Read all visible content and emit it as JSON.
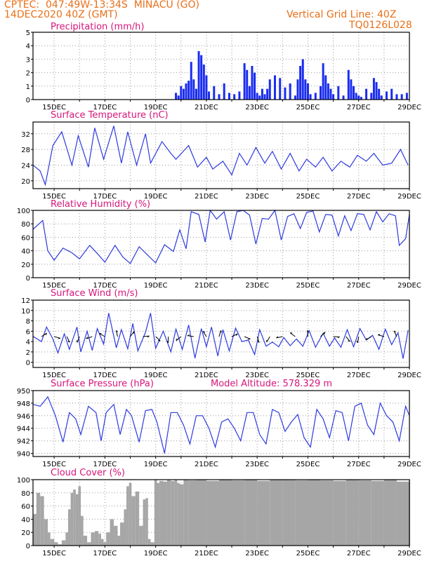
{
  "header": {
    "line1_left": "CPTEC:  047:49W-13:34S  MINACU (GO)",
    "line2_left": "14DEC2020 40Z (GMT)",
    "line1_right": "Vertical Grid Line: 40Z",
    "line2_right": "TQ0126L028"
  },
  "colors": {
    "header": "#e8701a",
    "title": "#d6157a",
    "series": "#2e3adf",
    "bars": "#1a2cf0",
    "cloud": "#a6a6a6",
    "grid": "#999999"
  },
  "x_tick_labels": [
    "15DEC",
    "17DEC",
    "19DEC",
    "21DEC",
    "23DEC",
    "25DEC",
    "27DEC",
    "29DEC"
  ],
  "chart_data": [
    {
      "id": "precip",
      "type": "bar",
      "title": "Precipitation (mm/h)",
      "xlabel": "",
      "ylabel": "",
      "ylim": [
        0,
        5
      ],
      "ytick_labels": [
        "0",
        "1",
        "2",
        "3",
        "4",
        "5"
      ],
      "x_range_days": [
        14.167,
        29.0
      ],
      "x": [
        19.8,
        19.9,
        20.0,
        20.1,
        20.2,
        20.3,
        20.4,
        20.5,
        20.6,
        20.7,
        20.8,
        20.9,
        21.0,
        21.1,
        21.3,
        21.5,
        21.7,
        21.9,
        22.1,
        22.3,
        22.5,
        22.6,
        22.7,
        22.8,
        22.9,
        23.0,
        23.1,
        23.2,
        23.3,
        23.4,
        23.5,
        23.7,
        23.9,
        24.1,
        24.3,
        24.5,
        24.6,
        24.7,
        24.8,
        24.9,
        25.0,
        25.1,
        25.3,
        25.5,
        25.6,
        25.7,
        25.8,
        25.9,
        26.0,
        26.2,
        26.4,
        26.6,
        26.7,
        26.8,
        26.9,
        27.0,
        27.1,
        27.3,
        27.5,
        27.6,
        27.7,
        27.8,
        27.9,
        28.1,
        28.3,
        28.5,
        28.7,
        28.9
      ],
      "values": [
        0.5,
        0.3,
        1.0,
        0.8,
        1.2,
        1.4,
        2.8,
        1.5,
        0.8,
        3.6,
        3.3,
        2.6,
        1.8,
        0.6,
        1.0,
        0.4,
        1.2,
        0.5,
        0.4,
        0.6,
        2.7,
        2.2,
        1.0,
        2.5,
        2.0,
        0.5,
        0.3,
        0.8,
        0.4,
        0.8,
        1.5,
        1.8,
        1.6,
        0.9,
        1.2,
        0.3,
        1.5,
        2.5,
        3.0,
        1.5,
        1.2,
        0.4,
        0.5,
        1.0,
        2.7,
        1.8,
        1.2,
        0.8,
        0.4,
        1.0,
        0.3,
        2.2,
        1.5,
        1.0,
        0.5,
        0.3,
        0.2,
        0.8,
        0.5,
        1.6,
        1.3,
        0.8,
        0.3,
        0.6,
        0.8,
        0.4,
        0.4,
        0.5
      ]
    },
    {
      "id": "temp",
      "type": "line",
      "title": "Surface Temperature (nC)",
      "xlabel": "",
      "ylabel": "",
      "ylim": [
        18,
        35
      ],
      "ytick_labels": [
        "20",
        "24",
        "28",
        "32"
      ],
      "ytick_values": [
        20,
        24,
        28,
        32
      ],
      "x_range_days": [
        14.167,
        29.0
      ],
      "x": [
        14.17,
        14.45,
        14.65,
        14.95,
        15.3,
        15.7,
        15.95,
        16.35,
        16.6,
        16.95,
        17.35,
        17.65,
        17.9,
        18.25,
        18.6,
        18.8,
        19.25,
        19.6,
        19.8,
        20.3,
        20.65,
        21.0,
        21.25,
        21.65,
        22.0,
        22.3,
        22.6,
        22.95,
        23.3,
        23.6,
        23.95,
        24.3,
        24.65,
        24.95,
        25.3,
        25.6,
        25.95,
        26.3,
        26.65,
        26.95,
        27.3,
        27.6,
        27.95,
        28.3,
        28.65,
        28.95
      ],
      "values": [
        24.0,
        22.5,
        19.0,
        29.0,
        32.5,
        24.0,
        31.5,
        23.5,
        33.5,
        25.5,
        34.0,
        24.5,
        32.5,
        24.0,
        32.0,
        24.5,
        30.0,
        27.0,
        25.5,
        29.0,
        23.5,
        26.0,
        23.0,
        25.0,
        21.5,
        27.0,
        24.0,
        28.5,
        24.5,
        27.5,
        23.0,
        27.0,
        22.5,
        25.5,
        23.5,
        26.0,
        22.5,
        25.0,
        23.5,
        26.5,
        25.0,
        27.0,
        24.0,
        24.5,
        28.0,
        24.0
      ]
    },
    {
      "id": "rh",
      "type": "line",
      "title": "Relative Humidity (%)",
      "xlabel": "",
      "ylabel": "",
      "ylim": [
        0,
        100
      ],
      "ytick_labels": [
        "0",
        "20",
        "40",
        "60",
        "80",
        "100"
      ],
      "ytick_values": [
        0,
        20,
        40,
        60,
        80,
        100
      ],
      "x_range_days": [
        14.167,
        29.0
      ],
      "x": [
        14.17,
        14.55,
        14.75,
        15.0,
        15.35,
        15.7,
        16.0,
        16.4,
        16.7,
        17.0,
        17.4,
        17.7,
        18.0,
        18.35,
        18.7,
        19.0,
        19.35,
        19.7,
        19.95,
        20.2,
        20.4,
        20.7,
        20.95,
        21.15,
        21.4,
        21.7,
        21.95,
        22.2,
        22.45,
        22.7,
        22.95,
        23.2,
        23.45,
        23.7,
        23.95,
        24.2,
        24.45,
        24.7,
        24.95,
        25.2,
        25.45,
        25.7,
        25.95,
        26.2,
        26.45,
        26.7,
        26.95,
        27.2,
        27.45,
        27.7,
        27.95,
        28.2,
        28.45,
        28.6,
        28.85,
        29.0
      ],
      "values": [
        72.0,
        85.0,
        40.0,
        26.0,
        44.0,
        37.0,
        28.0,
        48.0,
        36.0,
        23.0,
        48.0,
        31.0,
        21.0,
        46.0,
        33.0,
        22.0,
        49.0,
        39.0,
        71.0,
        43.0,
        98.0,
        94.0,
        53.0,
        100.0,
        87.0,
        98.0,
        56.0,
        98.0,
        100.0,
        93.0,
        50.0,
        88.0,
        87.0,
        100.0,
        56.0,
        91.0,
        95.0,
        73.0,
        97.0,
        99.0,
        68.0,
        94.0,
        93.0,
        62.0,
        92.0,
        70.0,
        95.0,
        94.0,
        71.0,
        98.0,
        83.0,
        95.0,
        92.0,
        48.0,
        58.0,
        94.0
      ]
    },
    {
      "id": "wind",
      "type": "line",
      "title": "Surface Wind (m/s)",
      "xlabel": "",
      "ylabel": "",
      "ylim": [
        -1,
        12
      ],
      "ytick_labels": [
        "0",
        "2",
        "4",
        "6",
        "8",
        "10",
        "12"
      ],
      "ytick_values": [
        0,
        2,
        4,
        6,
        8,
        10,
        12
      ],
      "x_range_days": [
        14.167,
        29.0
      ],
      "x": [
        14.17,
        14.5,
        14.7,
        14.95,
        15.15,
        15.4,
        15.6,
        15.9,
        16.05,
        16.3,
        16.5,
        16.7,
        16.95,
        17.15,
        17.45,
        17.65,
        17.9,
        18.1,
        18.3,
        18.6,
        18.8,
        19.0,
        19.3,
        19.6,
        19.8,
        20.05,
        20.3,
        20.55,
        20.8,
        21.0,
        21.2,
        21.45,
        21.65,
        21.9,
        22.15,
        22.4,
        22.65,
        22.9,
        23.1,
        23.35,
        23.6,
        23.85,
        24.05,
        24.3,
        24.55,
        24.8,
        25.05,
        25.3,
        25.6,
        25.85,
        26.05,
        26.3,
        26.55,
        26.8,
        27.05,
        27.3,
        27.55,
        27.8,
        28.05,
        28.3,
        28.55,
        28.75,
        28.95
      ],
      "values": [
        5.0,
        4.0,
        6.8,
        4.5,
        1.8,
        5.5,
        2.5,
        6.8,
        2.0,
        6.0,
        2.3,
        6.5,
        3.5,
        9.5,
        2.8,
        6.3,
        2.6,
        7.5,
        2.2,
        5.8,
        9.5,
        2.7,
        6.0,
        2.0,
        6.4,
        2.5,
        7.2,
        0.8,
        6.5,
        3.0,
        6.8,
        1.2,
        6.3,
        2.2,
        6.6,
        4.0,
        4.3,
        1.5,
        6.3,
        3.1,
        3.9,
        3.0,
        4.8,
        3.2,
        4.5,
        3.1,
        6.1,
        2.9,
        5.6,
        3.1,
        4.7,
        2.9,
        6.3,
        3.0,
        6.5,
        4.3,
        5.2,
        2.5,
        6.4,
        3.4,
        5.7,
        0.7,
        6.2
      ]
    },
    {
      "id": "pressure",
      "type": "line",
      "title": "Surface Pressure (hPa)",
      "subtitle": "Model Altitude: 578.329 m",
      "xlabel": "",
      "ylabel": "",
      "ylim": [
        939.5,
        950
      ],
      "ytick_labels": [
        "940",
        "942",
        "944",
        "946",
        "948",
        "950"
      ],
      "ytick_values": [
        940,
        942,
        944,
        946,
        948,
        950
      ],
      "x_range_days": [
        14.167,
        29.0
      ],
      "x": [
        14.17,
        14.45,
        14.75,
        15.05,
        15.35,
        15.6,
        15.85,
        16.05,
        16.35,
        16.65,
        16.85,
        17.05,
        17.35,
        17.6,
        17.85,
        18.05,
        18.35,
        18.6,
        18.85,
        19.05,
        19.35,
        19.6,
        19.85,
        20.1,
        20.35,
        20.6,
        20.85,
        21.1,
        21.35,
        21.6,
        21.85,
        22.1,
        22.35,
        22.6,
        22.85,
        23.1,
        23.35,
        23.6,
        23.85,
        24.1,
        24.35,
        24.6,
        24.85,
        25.1,
        25.35,
        25.6,
        25.85,
        26.1,
        26.35,
        26.6,
        26.85,
        27.1,
        27.35,
        27.6,
        27.85,
        28.1,
        28.35,
        28.6,
        28.85,
        29.0
      ],
      "values": [
        947.8,
        947.5,
        949.0,
        946.0,
        941.8,
        946.5,
        945.5,
        943.0,
        947.5,
        946.5,
        942.0,
        946.5,
        947.8,
        943.0,
        947.0,
        946.0,
        941.8,
        946.8,
        947.0,
        945.0,
        940.0,
        946.5,
        946.5,
        944.5,
        941.5,
        946.0,
        946.0,
        944.0,
        941.0,
        945.0,
        945.5,
        944.0,
        942.0,
        946.5,
        946.5,
        943.0,
        941.5,
        947.0,
        946.5,
        943.5,
        945.0,
        946.2,
        942.5,
        941.0,
        947.0,
        945.5,
        942.5,
        946.8,
        946.5,
        942.0,
        947.5,
        948.0,
        944.5,
        943.0,
        948.0,
        946.0,
        945.0,
        942.0,
        947.5,
        946.0
      ]
    },
    {
      "id": "cloud",
      "type": "area",
      "title": "Cloud Cover (%)",
      "xlabel": "",
      "ylabel": "",
      "ylim": [
        0,
        100
      ],
      "ytick_labels": [
        "0",
        "20",
        "40",
        "60",
        "80",
        "100"
      ],
      "ytick_values": [
        0,
        20,
        40,
        60,
        80,
        100
      ],
      "x_range_days": [
        14.167,
        29.0
      ],
      "x": [
        14.17,
        14.3,
        14.45,
        14.6,
        14.75,
        14.85,
        15.0,
        15.15,
        15.3,
        15.45,
        15.55,
        15.65,
        15.75,
        15.85,
        15.95,
        16.05,
        16.15,
        16.3,
        16.45,
        16.6,
        16.75,
        16.85,
        16.95,
        17.05,
        17.2,
        17.35,
        17.5,
        17.6,
        17.75,
        17.85,
        17.95,
        18.05,
        18.2,
        18.35,
        18.5,
        18.6,
        18.7,
        18.8,
        18.95,
        19.05,
        19.15,
        19.3,
        19.45,
        19.6,
        19.75,
        19.85,
        19.95,
        20.1,
        20.3,
        20.6,
        21.0,
        21.5,
        22.0,
        22.5,
        23.0,
        23.5,
        24.0,
        24.5,
        25.0,
        25.5,
        26.0,
        26.5,
        27.0,
        27.5,
        28.0,
        28.5,
        29.0
      ],
      "values": [
        48,
        80,
        75,
        40,
        20,
        10,
        5,
        2,
        8,
        20,
        55,
        80,
        85,
        78,
        90,
        45,
        15,
        5,
        20,
        22,
        18,
        10,
        5,
        20,
        40,
        30,
        15,
        35,
        55,
        90,
        95,
        75,
        82,
        30,
        70,
        72,
        10,
        5,
        100,
        95,
        98,
        97,
        100,
        98,
        100,
        95,
        93,
        100,
        99,
        100,
        98,
        100,
        99,
        100,
        98,
        100,
        100,
        99,
        100,
        99,
        98,
        100,
        99,
        98,
        100,
        97,
        100
      ]
    }
  ]
}
